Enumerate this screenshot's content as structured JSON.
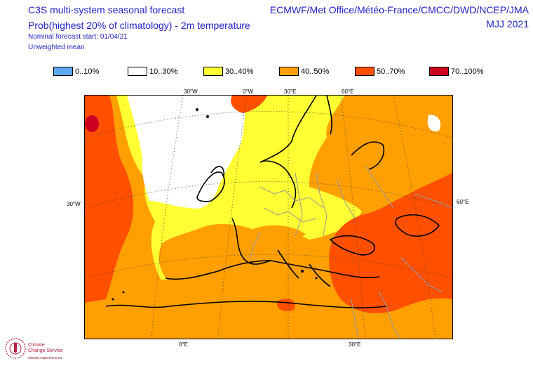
{
  "header": {
    "title": "C3S multi-system seasonal forecast",
    "subtitle": "Prob(highest 20% of climatology) - 2m temperature",
    "start": "Nominal forecast start: 01/04/21",
    "method": "Unweighted mean",
    "centres": "ECMWF/Met Office/Météo-France/CMCC/DWD/NCEP/JMA",
    "period": "MJJ 2021"
  },
  "legend": [
    {
      "label": "0..10%",
      "color": "#5fa8f0"
    },
    {
      "label": "10..30%",
      "color": "#ffffff"
    },
    {
      "label": "30..40%",
      "color": "#ffff33"
    },
    {
      "label": "40..50%",
      "color": "#ff9f00"
    },
    {
      "label": "50..70%",
      "color": "#ff5000"
    },
    {
      "label": "70..100%",
      "color": "#cc0020"
    }
  ],
  "axes": {
    "top": [
      "30°W",
      "0°W",
      "30°E",
      "60°E"
    ],
    "bottom": [
      "0°E",
      "30°E"
    ],
    "left": "30°W",
    "right": "60°E"
  },
  "logo": {
    "line1": "Climate",
    "line2": "Change Service",
    "line3": "climate.copernicus.eu"
  }
}
